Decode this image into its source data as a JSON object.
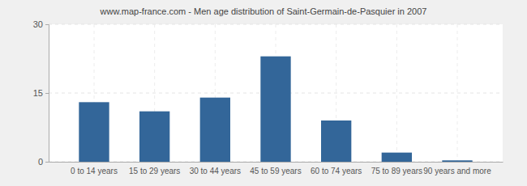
{
  "chart_data": {
    "type": "bar",
    "title": "www.map-france.com - Men age distribution of Saint-Germain-de-Pasquier in 2007",
    "categories": [
      "0 to 14 years",
      "15 to 29 years",
      "30 to 44 years",
      "45 to 59 years",
      "60 to 74 years",
      "75 to 89 years",
      "90 years and more"
    ],
    "values": [
      13,
      11,
      14,
      23,
      9,
      2,
      0.3
    ],
    "color": "#336699",
    "ylim": [
      0,
      30
    ],
    "yticks": [
      0,
      15,
      30
    ],
    "grid": true
  }
}
